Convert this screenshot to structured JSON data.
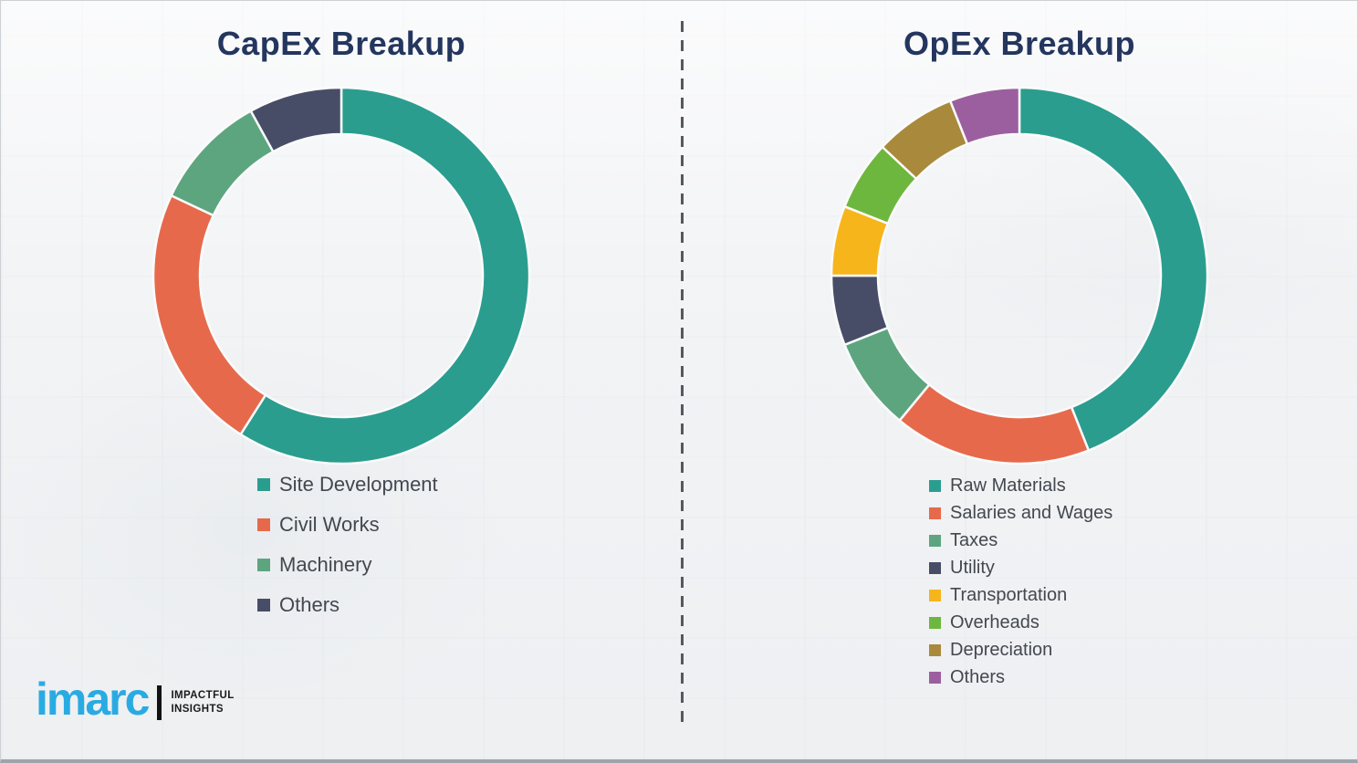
{
  "chart_data": [
    {
      "type": "pie",
      "subtype": "donut",
      "title": "CapEx Breakup",
      "labels": [
        "Site Development",
        "Civil Works",
        "Machinery",
        "Others"
      ],
      "values": [
        59,
        23,
        10,
        8
      ],
      "unit": "percent-of-total",
      "colors": [
        "#2A9D8F",
        "#E7694C",
        "#5DA57F",
        "#484D67"
      ],
      "start_angle_deg": 0,
      "direction": "clockwise",
      "legend_position": "below-chart-left"
    },
    {
      "type": "pie",
      "subtype": "donut",
      "title": "OpEx Breakup",
      "labels": [
        "Raw Materials",
        "Salaries and Wages",
        "Taxes",
        "Utility",
        "Transportation",
        "Overheads",
        "Depreciation",
        "Others"
      ],
      "values": [
        44,
        17,
        8,
        6,
        6,
        6,
        7,
        6
      ],
      "unit": "percent-of-total",
      "colors": [
        "#2A9D8F",
        "#E7694C",
        "#5DA57F",
        "#484D67",
        "#F7B51C",
        "#6EB73E",
        "#A98A3C",
        "#9B5F9F"
      ],
      "start_angle_deg": 0,
      "direction": "clockwise",
      "legend_position": "below-chart-left"
    }
  ],
  "divider": {
    "style": "vertical-dashed",
    "color": "#54585F"
  },
  "logo": {
    "brand": "imarc",
    "brand_color": "#29ABE2",
    "tagline_line1": "IMPACTFUL",
    "tagline_line2": "INSIGHTS",
    "tagline_color": "#1A1A1C"
  }
}
